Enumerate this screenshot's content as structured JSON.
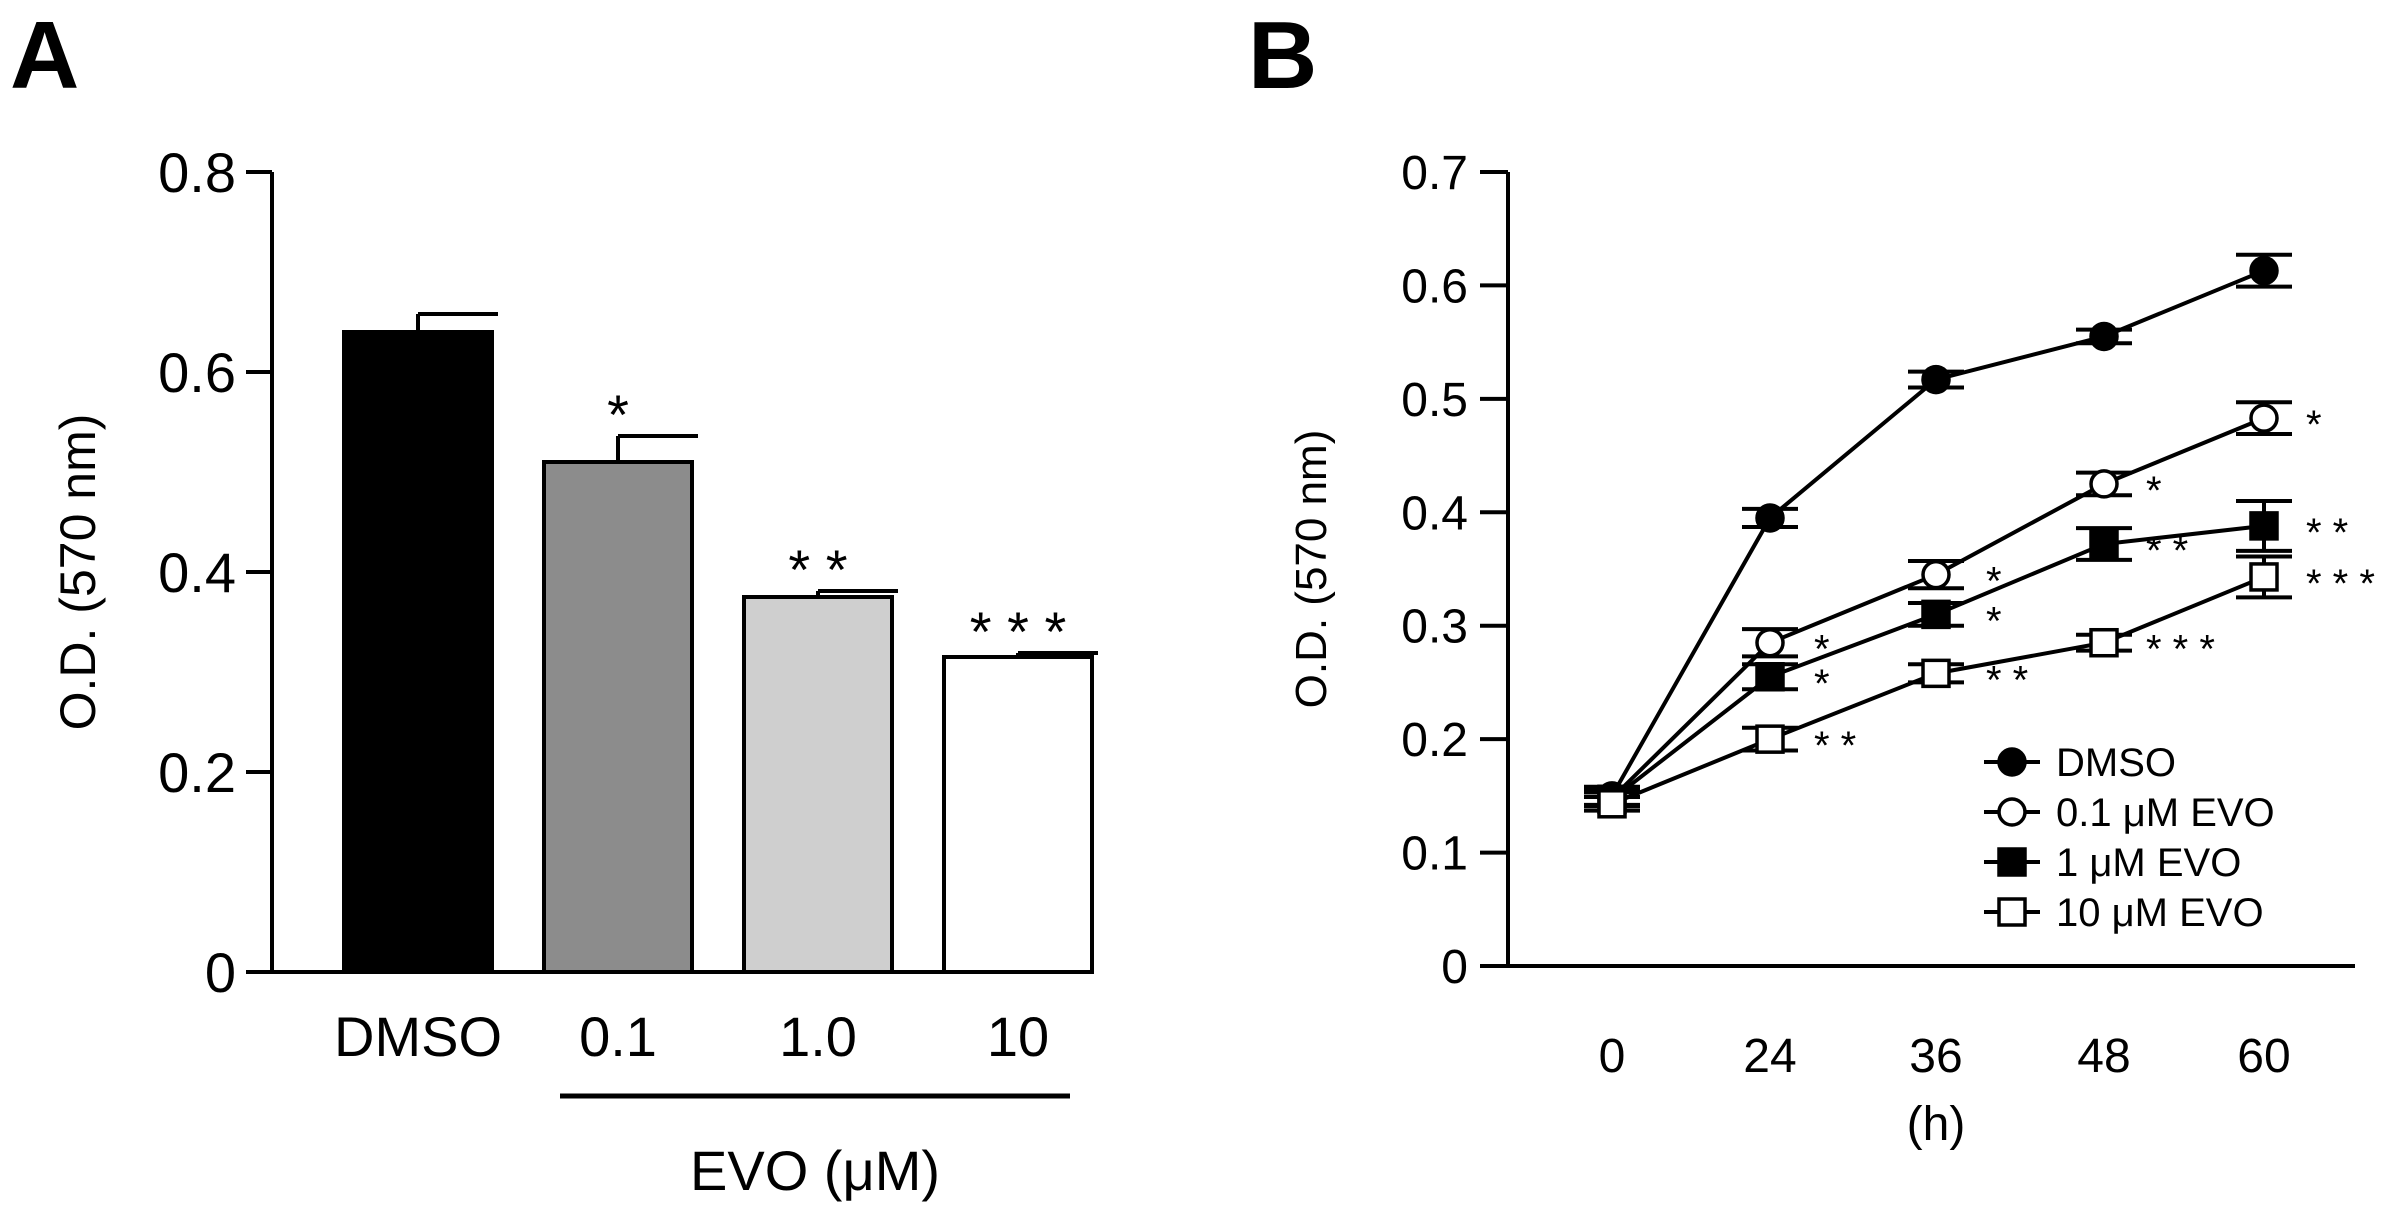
{
  "chart_data": [
    {
      "panel": "A",
      "type": "bar",
      "title": "",
      "xlabel": "EVO (μM)",
      "ylabel": "O.D. (570 nm)",
      "ylim": [
        0,
        0.8
      ],
      "yticks": [
        0,
        0.2,
        0.4,
        0.6,
        0.8
      ],
      "ytick_labels": [
        "0",
        "0.2",
        "0.4",
        "0.6",
        "0.8"
      ],
      "categories": [
        "DMSO",
        "0.1",
        "1.0",
        "10"
      ],
      "values": [
        0.64,
        0.51,
        0.375,
        0.315
      ],
      "errors": [
        0.018,
        0.026,
        0.006,
        0.004
      ],
      "fills": [
        "#000000",
        "#8c8c8c",
        "#cfcfcf",
        "#ffffff"
      ],
      "significance": [
        "",
        "*",
        "* *",
        "* * *"
      ]
    },
    {
      "panel": "B",
      "type": "line",
      "title": "",
      "xlabel": "(h)",
      "ylabel": "O.D. (570 nm)",
      "ylim": [
        0,
        0.7
      ],
      "yticks": [
        0,
        0.1,
        0.2,
        0.3,
        0.4,
        0.5,
        0.6,
        0.7
      ],
      "ytick_labels": [
        "0",
        "0.1",
        "0.2",
        "0.3",
        "0.4",
        "0.5",
        "0.6",
        "0.7"
      ],
      "x": [
        0,
        24,
        36,
        48,
        60
      ],
      "xtick_labels": [
        "0",
        "24",
        "36",
        "48",
        "60"
      ],
      "series": [
        {
          "name": "DMSO",
          "marker": "circle-filled",
          "values": [
            0.15,
            0.395,
            0.517,
            0.555,
            0.613
          ],
          "errors": [
            0.008,
            0.008,
            0.007,
            0.006,
            0.014
          ],
          "stars": [
            "",
            "",
            "",
            "",
            ""
          ]
        },
        {
          "name": "0.1 μM EVO",
          "marker": "circle-open",
          "values": [
            0.148,
            0.285,
            0.345,
            0.425,
            0.483
          ],
          "errors": [
            0.007,
            0.012,
            0.012,
            0.01,
            0.014
          ],
          "stars": [
            "",
            "*",
            "*",
            "*",
            "*"
          ]
        },
        {
          "name": "1 μM EVO",
          "marker": "square-filled",
          "values": [
            0.147,
            0.255,
            0.31,
            0.372,
            0.388
          ],
          "errors": [
            0.006,
            0.011,
            0.01,
            0.014,
            0.022
          ],
          "stars": [
            "",
            "*",
            "*",
            "* *",
            "* *"
          ]
        },
        {
          "name": "10 μM EVO",
          "marker": "square-open",
          "values": [
            0.143,
            0.2,
            0.258,
            0.285,
            0.343
          ],
          "errors": [
            0.006,
            0.01,
            0.008,
            0.007,
            0.018
          ],
          "stars": [
            "",
            "* *",
            "* *",
            "* * *",
            "* * *"
          ]
        }
      ]
    }
  ],
  "panel_labels": {
    "a": "A",
    "b": "B"
  }
}
